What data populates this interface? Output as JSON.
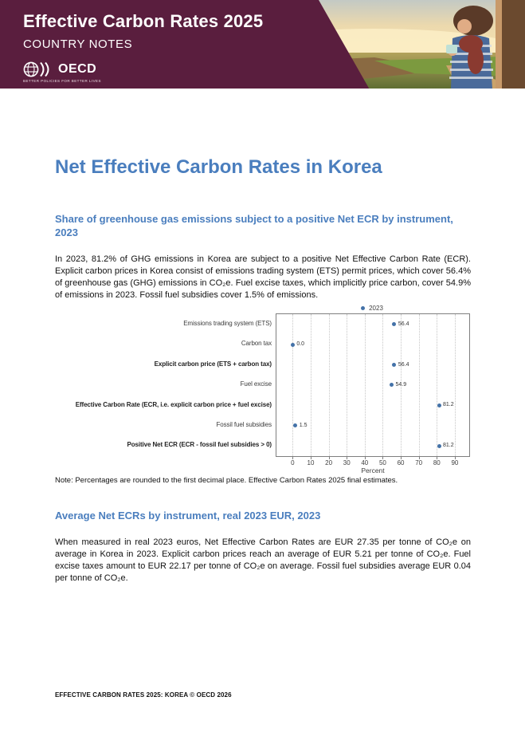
{
  "header": {
    "title": "Effective Carbon Rates 2025",
    "subtitle": "COUNTRY NOTES",
    "logo_text": "OECD",
    "logo_tagline": "BETTER POLICIES FOR BETTER LIVES",
    "band_color": "#5A1E3E"
  },
  "main": {
    "title": "Net Effective Carbon Rates in Korea",
    "accent_color": "#4A7EBE",
    "section1": {
      "heading": "Share of greenhouse gas emissions subject to a positive Net ECR by instrument, 2023",
      "paragraph": "In 2023, 81.2% of GHG emissions in Korea are subject to a positive Net Effective Carbon Rate (ECR). Explicit carbon prices in Korea consist of emissions trading system (ETS) permit prices, which cover 56.4% of greenhouse gas (GHG) emissions in CO₂e. Fuel excise taxes, which implicitly price carbon, cover 54.9% of emissions in 2023. Fossil fuel subsidies cover 1.5% of emissions.",
      "note": "Note: Percentages are rounded to the first decimal place. Effective Carbon Rates 2025 final estimates."
    },
    "section2": {
      "heading": "Average Net ECRs by instrument, real 2023 EUR, 2023",
      "paragraph": "When measured in real 2023 euros, Net Effective Carbon Rates are EUR 27.35 per tonne of CO₂e on average in Korea in 2023. Explicit carbon prices reach an average of EUR 5.21 per tonne of CO₂e. Fuel excise taxes amount to EUR 22.17 per tonne of CO₂e on average. Fossil fuel subsidies average EUR 0.04 per tonne of CO₂e."
    }
  },
  "chart_data": {
    "type": "scatter",
    "title": "",
    "legend": {
      "label": "2023",
      "position": "top-center"
    },
    "categories": [
      "Emissions trading system (ETS)",
      "Carbon tax",
      "Explicit carbon price (ETS + carbon tax)",
      "Fuel excise",
      "Effective Carbon Rate (ECR, i.e. explicit carbon price + fuel excise)",
      "Fossil fuel subsidies",
      "Positive Net ECR (ECR - fossil fuel subsidies > 0)"
    ],
    "bold_categories": [
      false,
      false,
      true,
      false,
      true,
      false,
      true
    ],
    "values": [
      56.4,
      0.0,
      56.4,
      54.9,
      81.2,
      1.5,
      81.2
    ],
    "value_labels": [
      "56.4",
      "0.0",
      "56.4",
      "54.9",
      "81.2",
      "1.5",
      "81.2"
    ],
    "xlabel": "Percent",
    "x_ticks": [
      0,
      10,
      20,
      30,
      40,
      50,
      60,
      70,
      80,
      90
    ],
    "xlim": [
      -9,
      98
    ],
    "grid": "vertical-dotted",
    "dot_color": "#4472A8"
  },
  "footer": {
    "text": "EFFECTIVE CARBON RATES 2025: KOREA © OECD 2026"
  }
}
